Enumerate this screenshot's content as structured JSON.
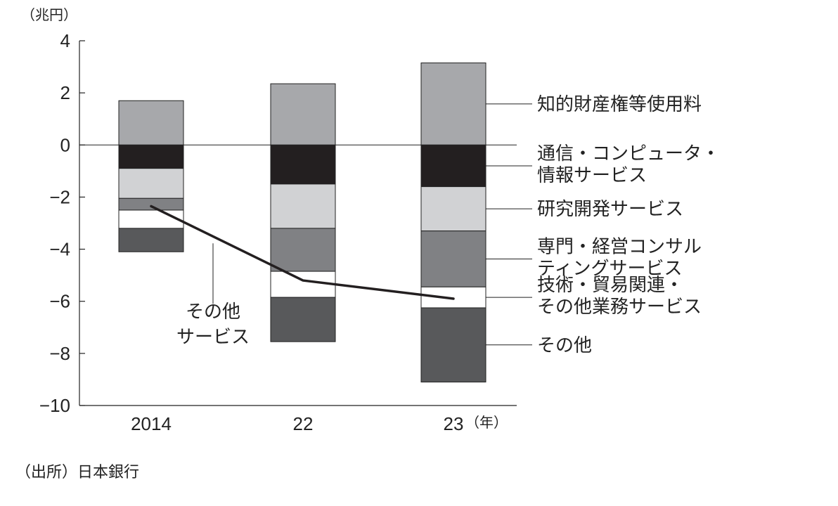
{
  "chart_data": {
    "type": "bar",
    "stacked": true,
    "y_unit_label": "（兆円）",
    "x_unit_label": "（年）",
    "categories": [
      "2014",
      "22",
      "23"
    ],
    "ylim": [
      -10,
      4
    ],
    "yticks": [
      "4",
      "2",
      "0",
      "−2",
      "−4",
      "−6",
      "−8",
      "−10"
    ],
    "ytick_values": [
      4,
      2,
      0,
      -2,
      -4,
      -6,
      -8,
      -10
    ],
    "series": [
      {
        "name": "知的財産権等使用料",
        "color": "#a7a8ab",
        "values": [
          1.7,
          2.35,
          3.15
        ]
      },
      {
        "name": "通信・コンピュータ・情報サービス",
        "color": "#231f20",
        "values": [
          -0.9,
          -1.5,
          -1.6
        ]
      },
      {
        "name": "研究開発サービス",
        "color": "#d1d2d4",
        "values": [
          -1.15,
          -1.7,
          -1.7
        ]
      },
      {
        "name": "専門・経営コンサルティングサービス",
        "color": "#808184",
        "values": [
          -0.45,
          -1.65,
          -2.15
        ]
      },
      {
        "name": "技術・貿易関連・その他業務サービス",
        "color": "#ffffff",
        "values": [
          -0.7,
          -1.0,
          -0.8
        ]
      },
      {
        "name": "その他",
        "color": "#58595b",
        "values": [
          -0.9,
          -1.7,
          -2.85
        ]
      }
    ],
    "line": {
      "name": "その他サービス",
      "label_lines": [
        "その他",
        "サービス"
      ],
      "color": "#231f20",
      "values": [
        -2.35,
        -5.2,
        -5.9
      ]
    },
    "legend_lines": [
      [
        "知的財産権等使用料"
      ],
      [
        "通信・コンピュータ・",
        "情報サービス"
      ],
      [
        "研究開発サービス"
      ],
      [
        "専門・経営コンサル",
        "ティングサービス"
      ],
      [
        "技術・貿易関連・",
        "その他業務サービス"
      ],
      [
        "その他"
      ]
    ],
    "source": "（出所）日本銀行"
  }
}
